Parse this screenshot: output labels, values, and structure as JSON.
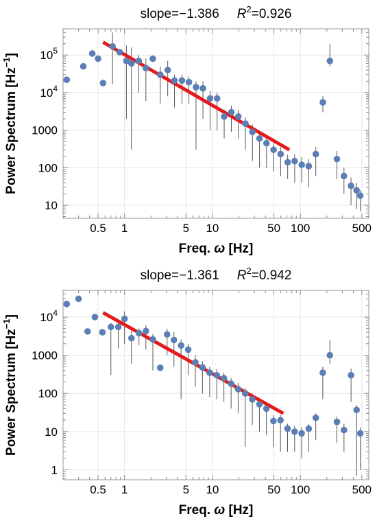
{
  "chart_data": [
    {
      "type": "scatter",
      "title_parts": {
        "slope_label": "slope=",
        "slope_value": "−1.386",
        "r2_label": "R",
        "r2_sup": "2",
        "r2_value": "=0.926"
      },
      "xlabel": {
        "prefix": "Freq. ",
        "symbol": "ω",
        "suffix": " [Hz]"
      },
      "ylabel": {
        "main": "Power Spectrum [Hz",
        "sup": "−1",
        "end": "]"
      },
      "x_scale": "log",
      "y_scale": "log",
      "xlim": [
        0.2,
        600
      ],
      "ylim": [
        4.5,
        500000
      ],
      "grid": true,
      "x_ticks": [
        {
          "value": 0.5,
          "label": "0.5"
        },
        {
          "value": 1,
          "label": "1"
        },
        {
          "value": 5,
          "label": "5"
        },
        {
          "value": 10,
          "label": "10"
        },
        {
          "value": 50,
          "label": "50"
        },
        {
          "value": 100,
          "label": "100"
        },
        {
          "value": 500,
          "label": "500"
        }
      ],
      "y_ticks": [
        {
          "value": 10,
          "label": "10"
        },
        {
          "value": 100,
          "label": "100"
        },
        {
          "value": 1000,
          "label": "1000"
        },
        {
          "value": 10000,
          "label": "10",
          "sup": "4"
        },
        {
          "value": 100000,
          "label": "10",
          "sup": "5"
        }
      ],
      "x_grid": [
        0.5,
        1,
        5,
        10,
        50,
        100,
        500
      ],
      "y_grid": [
        10,
        100,
        1000,
        10000,
        100000
      ],
      "marker_color": "#5b7fb5",
      "errorbar_color": "#555555",
      "fit_color": "#e41a1c",
      "points": [
        {
          "x": 0.22,
          "y": 22000
        },
        {
          "x": 0.34,
          "y": 50000
        },
        {
          "x": 0.43,
          "y": 110000
        },
        {
          "x": 0.5,
          "y": 80000
        },
        {
          "x": 0.57,
          "y": 18000
        },
        {
          "x": 0.73,
          "y": 170000,
          "lo": 17000,
          "hi": 400000
        },
        {
          "x": 0.88,
          "y": 120000
        },
        {
          "x": 1.05,
          "y": 70000,
          "lo": 2000,
          "hi": 180000
        },
        {
          "x": 1.2,
          "y": 60000,
          "lo": 300,
          "hi": 160000
        },
        {
          "x": 1.45,
          "y": 70000,
          "lo": 10000,
          "hi": 100000
        },
        {
          "x": 1.75,
          "y": 45000,
          "lo": 6000,
          "hi": 80000
        },
        {
          "x": 2.1,
          "y": 80000
        },
        {
          "x": 2.55,
          "y": 30000,
          "lo": 5000,
          "hi": 50000
        },
        {
          "x": 3.1,
          "y": 40000,
          "lo": 8000,
          "hi": 70000
        },
        {
          "x": 3.7,
          "y": 21000,
          "lo": 4000,
          "hi": 30000
        },
        {
          "x": 4.5,
          "y": 21000,
          "lo": 5000,
          "hi": 30000
        },
        {
          "x": 5.4,
          "y": 19000,
          "lo": 5000,
          "hi": 27000
        },
        {
          "x": 6.5,
          "y": 14000,
          "lo": 300,
          "hi": 20000
        },
        {
          "x": 7.8,
          "y": 13000,
          "lo": 2000,
          "hi": 20000
        },
        {
          "x": 9.4,
          "y": 7000,
          "lo": 1000,
          "hi": 11000
        },
        {
          "x": 11.3,
          "y": 7000,
          "lo": 1000,
          "hi": 10000
        },
        {
          "x": 13.6,
          "y": 2300,
          "lo": 600,
          "hi": 3500
        },
        {
          "x": 16.4,
          "y": 3000,
          "lo": 900,
          "hi": 4500
        },
        {
          "x": 19.7,
          "y": 2300,
          "lo": 600,
          "hi": 3500
        },
        {
          "x": 23.7,
          "y": 1500,
          "lo": 300,
          "hi": 2200
        },
        {
          "x": 28.5,
          "y": 900,
          "lo": 150,
          "hi": 1400
        },
        {
          "x": 34.3,
          "y": 600,
          "lo": 100,
          "hi": 900
        },
        {
          "x": 41.2,
          "y": 450,
          "lo": 100,
          "hi": 700
        },
        {
          "x": 49.6,
          "y": 300,
          "lo": 80,
          "hi": 450
        },
        {
          "x": 59.6,
          "y": 230,
          "lo": 60,
          "hi": 350
        },
        {
          "x": 71.7,
          "y": 140,
          "lo": 50,
          "hi": 220
        },
        {
          "x": 86.2,
          "y": 150,
          "lo": 40,
          "hi": 230
        },
        {
          "x": 103.6,
          "y": 120,
          "lo": 40,
          "hi": 190
        },
        {
          "x": 124.6,
          "y": 110,
          "lo": 30,
          "hi": 170
        },
        {
          "x": 149.8,
          "y": 230,
          "lo": 60,
          "hi": 350
        },
        {
          "x": 180.2,
          "y": 5500,
          "lo": 3000,
          "hi": 8000
        },
        {
          "x": 216.7,
          "y": 70000,
          "lo": 50000,
          "hi": 200000
        },
        {
          "x": 260.5,
          "y": 170,
          "lo": 50,
          "hi": 280
        },
        {
          "x": 313.3,
          "y": 60,
          "lo": 20,
          "hi": 100
        },
        {
          "x": 376.7,
          "y": 33,
          "lo": 10,
          "hi": 55
        },
        {
          "x": 436,
          "y": 25,
          "lo": 8,
          "hi": 40
        },
        {
          "x": 480,
          "y": 18,
          "lo": 7,
          "hi": 25
        }
      ],
      "fit_line": {
        "x0": 0.57,
        "y0": 220000,
        "x1": 75,
        "y1": 300
      }
    },
    {
      "type": "scatter",
      "title_parts": {
        "slope_label": "slope=",
        "slope_value": "−1.361",
        "r2_label": "R",
        "r2_sup": "2",
        "r2_value": "=0.942"
      },
      "xlabel": {
        "prefix": "Freq. ",
        "symbol": "ω",
        "suffix": " [Hz]"
      },
      "ylabel": {
        "main": "Power Spectrum [Hz",
        "sup": "−1",
        "end": "]"
      },
      "x_scale": "log",
      "y_scale": "log",
      "xlim": [
        0.2,
        600
      ],
      "ylim": [
        0.55,
        50000
      ],
      "grid": true,
      "x_ticks": [
        {
          "value": 0.5,
          "label": "0.5"
        },
        {
          "value": 1,
          "label": "1"
        },
        {
          "value": 5,
          "label": "5"
        },
        {
          "value": 10,
          "label": "10"
        },
        {
          "value": 50,
          "label": "50"
        },
        {
          "value": 100,
          "label": "100"
        },
        {
          "value": 500,
          "label": "500"
        }
      ],
      "y_ticks": [
        {
          "value": 1,
          "label": "1"
        },
        {
          "value": 10,
          "label": "10"
        },
        {
          "value": 100,
          "label": "100"
        },
        {
          "value": 1000,
          "label": "1000"
        },
        {
          "value": 10000,
          "label": "10",
          "sup": "4"
        }
      ],
      "x_grid": [
        0.5,
        1,
        5,
        10,
        50,
        100,
        500
      ],
      "y_grid": [
        1,
        10,
        100,
        1000,
        10000
      ],
      "marker_color": "#5b7fb5",
      "errorbar_color": "#555555",
      "fit_color": "#e41a1c",
      "points": [
        {
          "x": 0.22,
          "y": 22000
        },
        {
          "x": 0.3,
          "y": 30000
        },
        {
          "x": 0.38,
          "y": 4200
        },
        {
          "x": 0.46,
          "y": 10000
        },
        {
          "x": 0.56,
          "y": 4000
        },
        {
          "x": 0.7,
          "y": 5500,
          "lo": 300,
          "hi": 7000
        },
        {
          "x": 0.85,
          "y": 5500,
          "lo": 1500,
          "hi": 7000
        },
        {
          "x": 1.0,
          "y": 9000,
          "lo": 2000,
          "hi": 14000
        },
        {
          "x": 1.2,
          "y": 2800,
          "lo": 600,
          "hi": 4500
        },
        {
          "x": 1.46,
          "y": 3800,
          "lo": 1800,
          "hi": 5000
        },
        {
          "x": 1.75,
          "y": 4300,
          "lo": 1400,
          "hi": 6000
        },
        {
          "x": 2.1,
          "y": 2600,
          "lo": 400,
          "hi": 3600
        },
        {
          "x": 2.55,
          "y": 470
        },
        {
          "x": 3.05,
          "y": 3500,
          "lo": 1000,
          "hi": 5000
        },
        {
          "x": 3.65,
          "y": 2500,
          "lo": 500,
          "hi": 4000
        },
        {
          "x": 4.4,
          "y": 1800,
          "lo": 70,
          "hi": 2600
        },
        {
          "x": 5.3,
          "y": 1400,
          "lo": 300,
          "hi": 2000
        },
        {
          "x": 6.4,
          "y": 650,
          "lo": 150,
          "hi": 1000
        },
        {
          "x": 7.7,
          "y": 480,
          "lo": 100,
          "hi": 700
        },
        {
          "x": 9.3,
          "y": 350,
          "lo": 80,
          "hi": 500
        },
        {
          "x": 11.2,
          "y": 300,
          "lo": 70,
          "hi": 430
        },
        {
          "x": 13.5,
          "y": 250,
          "lo": 60,
          "hi": 350
        },
        {
          "x": 16.3,
          "y": 180,
          "lo": 40,
          "hi": 250
        },
        {
          "x": 19.6,
          "y": 130,
          "lo": 30,
          "hi": 190
        },
        {
          "x": 23.6,
          "y": 100,
          "lo": 4,
          "hi": 140
        },
        {
          "x": 28.4,
          "y": 70,
          "lo": 15,
          "hi": 100
        },
        {
          "x": 34.2,
          "y": 52,
          "lo": 10,
          "hi": 75
        },
        {
          "x": 41.1,
          "y": 40,
          "lo": 8,
          "hi": 60
        },
        {
          "x": 49.4,
          "y": 19,
          "lo": 4,
          "hi": 27
        },
        {
          "x": 59.4,
          "y": 20,
          "lo": 3,
          "hi": 27
        },
        {
          "x": 71.5,
          "y": 12,
          "lo": 3,
          "hi": 16
        },
        {
          "x": 86,
          "y": 10,
          "lo": 3,
          "hi": 14
        },
        {
          "x": 103.5,
          "y": 9,
          "lo": 2,
          "hi": 13
        },
        {
          "x": 124.5,
          "y": 12,
          "lo": 3,
          "hi": 16
        },
        {
          "x": 149.8,
          "y": 23,
          "lo": 6,
          "hi": 30
        },
        {
          "x": 180,
          "y": 350,
          "lo": 70,
          "hi": 500
        },
        {
          "x": 216.5,
          "y": 1000,
          "lo": 600,
          "hi": 2500
        },
        {
          "x": 260.5,
          "y": 18,
          "lo": 5,
          "hi": 25
        },
        {
          "x": 313.5,
          "y": 11,
          "lo": 3,
          "hi": 16
        },
        {
          "x": 377,
          "y": 300,
          "lo": 60,
          "hi": 450
        },
        {
          "x": 436,
          "y": 37,
          "lo": 0.7,
          "hi": 50
        },
        {
          "x": 480,
          "y": 9,
          "lo": 1,
          "hi": 13
        }
      ],
      "fit_line": {
        "x0": 0.57,
        "y0": 13000,
        "x1": 64,
        "y1": 30
      }
    }
  ]
}
